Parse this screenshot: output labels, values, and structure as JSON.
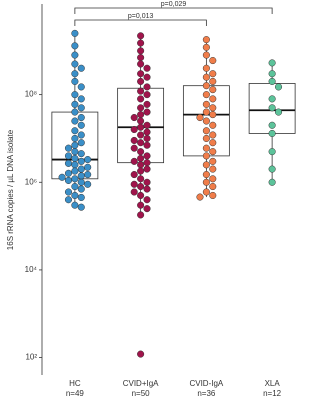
{
  "chart_data": {
    "type": "box",
    "ylabel": "16S rRNA copies / µL DNA isolate",
    "log_y": true,
    "categories": [
      "HC",
      "CVID+IgA",
      "CVID-IgA",
      "XLA"
    ],
    "n_labels": [
      "n=49",
      "n=50",
      "n=36",
      "n=12"
    ],
    "colors": [
      "#3a8fc8",
      "#a0144b",
      "#f07d4a",
      "#5cc39a"
    ],
    "ylim": [
      40,
      13000000000
    ],
    "yticks": [
      {
        "value": 100,
        "label": "10²"
      },
      {
        "value": 10000,
        "label": "10⁴"
      },
      {
        "value": 1000000,
        "label": "10⁶"
      },
      {
        "value": 100000000,
        "label": "10⁸"
      }
    ],
    "boxes": [
      {
        "whisker_low": 270000,
        "q1": 1200000,
        "median": 3300000,
        "q3": 40000000,
        "whisker_high": 2500000000
      },
      {
        "whisker_low": 180000,
        "q1": 2800000,
        "median": 18000000,
        "q3": 140000000,
        "whisker_high": 2200000000
      },
      {
        "whisker_low": 460000,
        "q1": 4000000,
        "median": 35000000,
        "q3": 160000000,
        "whisker_high": 1800000000
      },
      {
        "whisker_low": 1000000,
        "q1": 13000000,
        "median": 44000000,
        "q3": 180000000,
        "whisker_high": 530000000
      }
    ],
    "points": [
      [
        2500000000.0,
        1300000000.0,
        800000000.0,
        500000000.0,
        400000000.0,
        300000000.0,
        200000000.0,
        150000000.0,
        100000000.0,
        80000000.0,
        60000000.0,
        50000000.0,
        40000000.0,
        30000000.0,
        25000000.0,
        20000000.0,
        15000000.0,
        12000000.0,
        10000000.0,
        8000000.0,
        7000000.0,
        6000000.0,
        5000000.0,
        4500000.0,
        4000000.0,
        3500000.0,
        3300000.0,
        3000000.0,
        2700000.0,
        2500000.0,
        2200000.0,
        2000000.0,
        1800000.0,
        1600000.0,
        1500000.0,
        1400000.0,
        1300000.0,
        1200000.0,
        1100000.0,
        1000000.0,
        900000.0,
        800000.0,
        700000.0,
        600000.0,
        500000.0,
        450000.0,
        400000.0,
        300000.0,
        270000.0
      ],
      [
        2200000000.0,
        1500000000.0,
        1000000000.0,
        700000000.0,
        500000000.0,
        400000000.0,
        300000000.0,
        250000000.0,
        200000000.0,
        150000000.0,
        120000000.0,
        100000000.0,
        80000000.0,
        60000000.0,
        50000000.0,
        40000000.0,
        35000000.0,
        30000000.0,
        25000000.0,
        20000000.0,
        18000000.0,
        16000000.0,
        14000000.0,
        12000000.0,
        10000000.0,
        9000000.0,
        8000000.0,
        7000000.0,
        6000000.0,
        5000000.0,
        4000000.0,
        3500000.0,
        3000000.0,
        2800000.0,
        2500000.0,
        2000000.0,
        1800000.0,
        1500000.0,
        1200000.0,
        1000000.0,
        900000.0,
        800000.0,
        700000.0,
        600000.0,
        500000.0,
        400000.0,
        300000.0,
        250000.0,
        180000.0,
        120
      ],
      [
        1800000000.0,
        1200000000.0,
        800000000.0,
        600000000.0,
        400000000.0,
        300000000.0,
        250000000.0,
        200000000.0,
        160000000.0,
        130000000.0,
        100000000.0,
        80000000.0,
        60000000.0,
        50000000.0,
        40000000.0,
        35000000.0,
        30000000.0,
        25000000.0,
        20000000.0,
        15000000.0,
        12000000.0,
        10000000.0,
        8000000.0,
        6000000.0,
        5000000.0,
        4000000.0,
        3000000.0,
        2500000.0,
        2000000.0,
        1500000.0,
        1200000.0,
        1000000.0,
        800000.0,
        600000.0,
        500000.0,
        460000.0
      ],
      [
        530000000.0,
        300000000.0,
        200000000.0,
        150000000.0,
        80000000.0,
        50000000.0,
        40000000.0,
        20000000.0,
        13000000.0,
        5000000.0,
        2000000.0,
        1000000.0
      ]
    ],
    "comparisons": [
      {
        "from": 0,
        "to": 2,
        "label": "p=0,013"
      },
      {
        "from": 0,
        "to": 3,
        "label": "p=0,029"
      }
    ]
  }
}
